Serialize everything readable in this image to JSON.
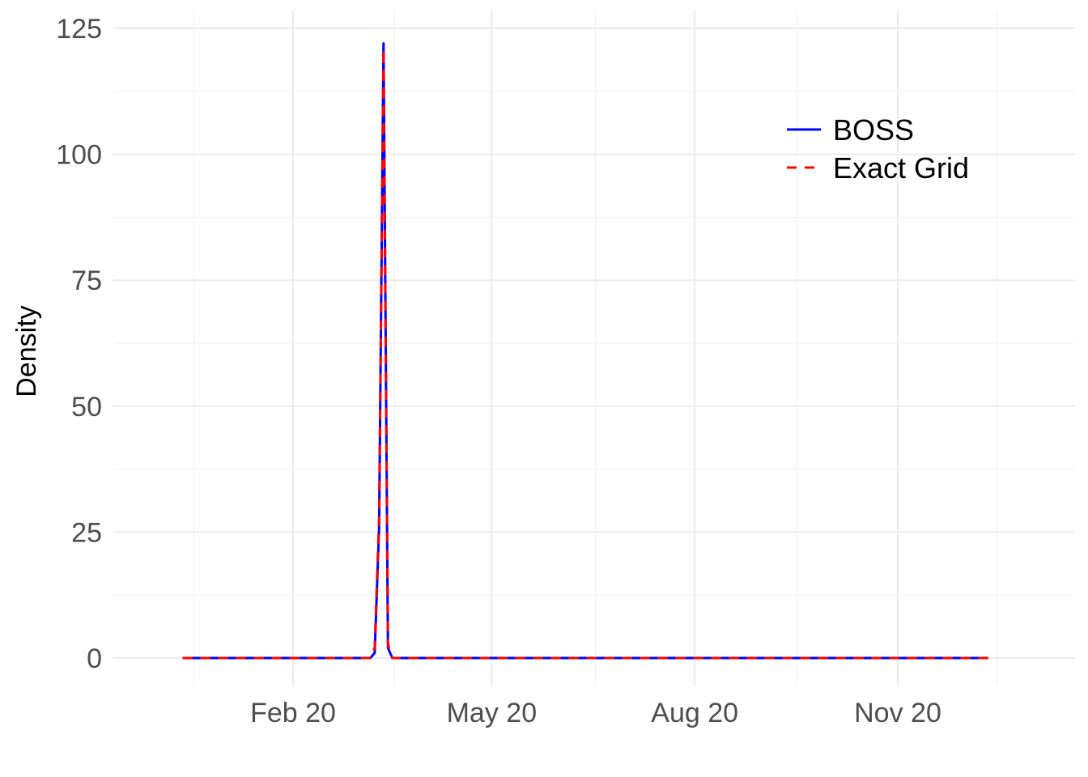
{
  "chart_data": {
    "type": "line",
    "title": "",
    "xlabel": "",
    "ylabel": "Density",
    "x_axis": {
      "type": "date",
      "range": [
        "2020-01-01",
        "2020-12-31"
      ],
      "ticks": [
        {
          "date": "2020-02-20",
          "label": "Feb 20"
        },
        {
          "date": "2020-05-20",
          "label": "May 20"
        },
        {
          "date": "2020-08-20",
          "label": "Aug 20"
        },
        {
          "date": "2020-11-20",
          "label": "Nov 20"
        }
      ],
      "minor_ticks": [
        "2020-01-06",
        "2020-04-06",
        "2020-07-06",
        "2020-10-05",
        "2021-01-04"
      ]
    },
    "y_axis": {
      "range": [
        -10,
        127
      ],
      "ticks": [
        0,
        25,
        50,
        75,
        100,
        125
      ],
      "minor_ticks": [
        12.5,
        37.5,
        62.5,
        87.5,
        112.5
      ]
    },
    "grid": true,
    "legend_position": "top-right",
    "series": [
      {
        "name": "BOSS",
        "color": "#0000ff",
        "linetype": "solid",
        "points": [
          {
            "x": "2020-01-01",
            "y": 0
          },
          {
            "x": "2020-03-26",
            "y": 0
          },
          {
            "x": "2020-03-28",
            "y": 1
          },
          {
            "x": "2020-03-30",
            "y": 26
          },
          {
            "x": "2020-04-01",
            "y": 122
          },
          {
            "x": "2020-04-03",
            "y": 2
          },
          {
            "x": "2020-04-05",
            "y": 0
          },
          {
            "x": "2020-12-31",
            "y": 0
          }
        ]
      },
      {
        "name": "Exact Grid",
        "color": "#ff0000",
        "linetype": "dashed",
        "points": [
          {
            "x": "2020-01-01",
            "y": 0
          },
          {
            "x": "2020-03-26",
            "y": 0
          },
          {
            "x": "2020-03-28",
            "y": 2
          },
          {
            "x": "2020-03-30",
            "y": 28
          },
          {
            "x": "2020-04-01",
            "y": 121
          },
          {
            "x": "2020-04-03",
            "y": 3
          },
          {
            "x": "2020-04-04",
            "y": 1
          },
          {
            "x": "2020-04-05",
            "y": 0
          },
          {
            "x": "2020-12-31",
            "y": 0
          }
        ]
      }
    ]
  }
}
